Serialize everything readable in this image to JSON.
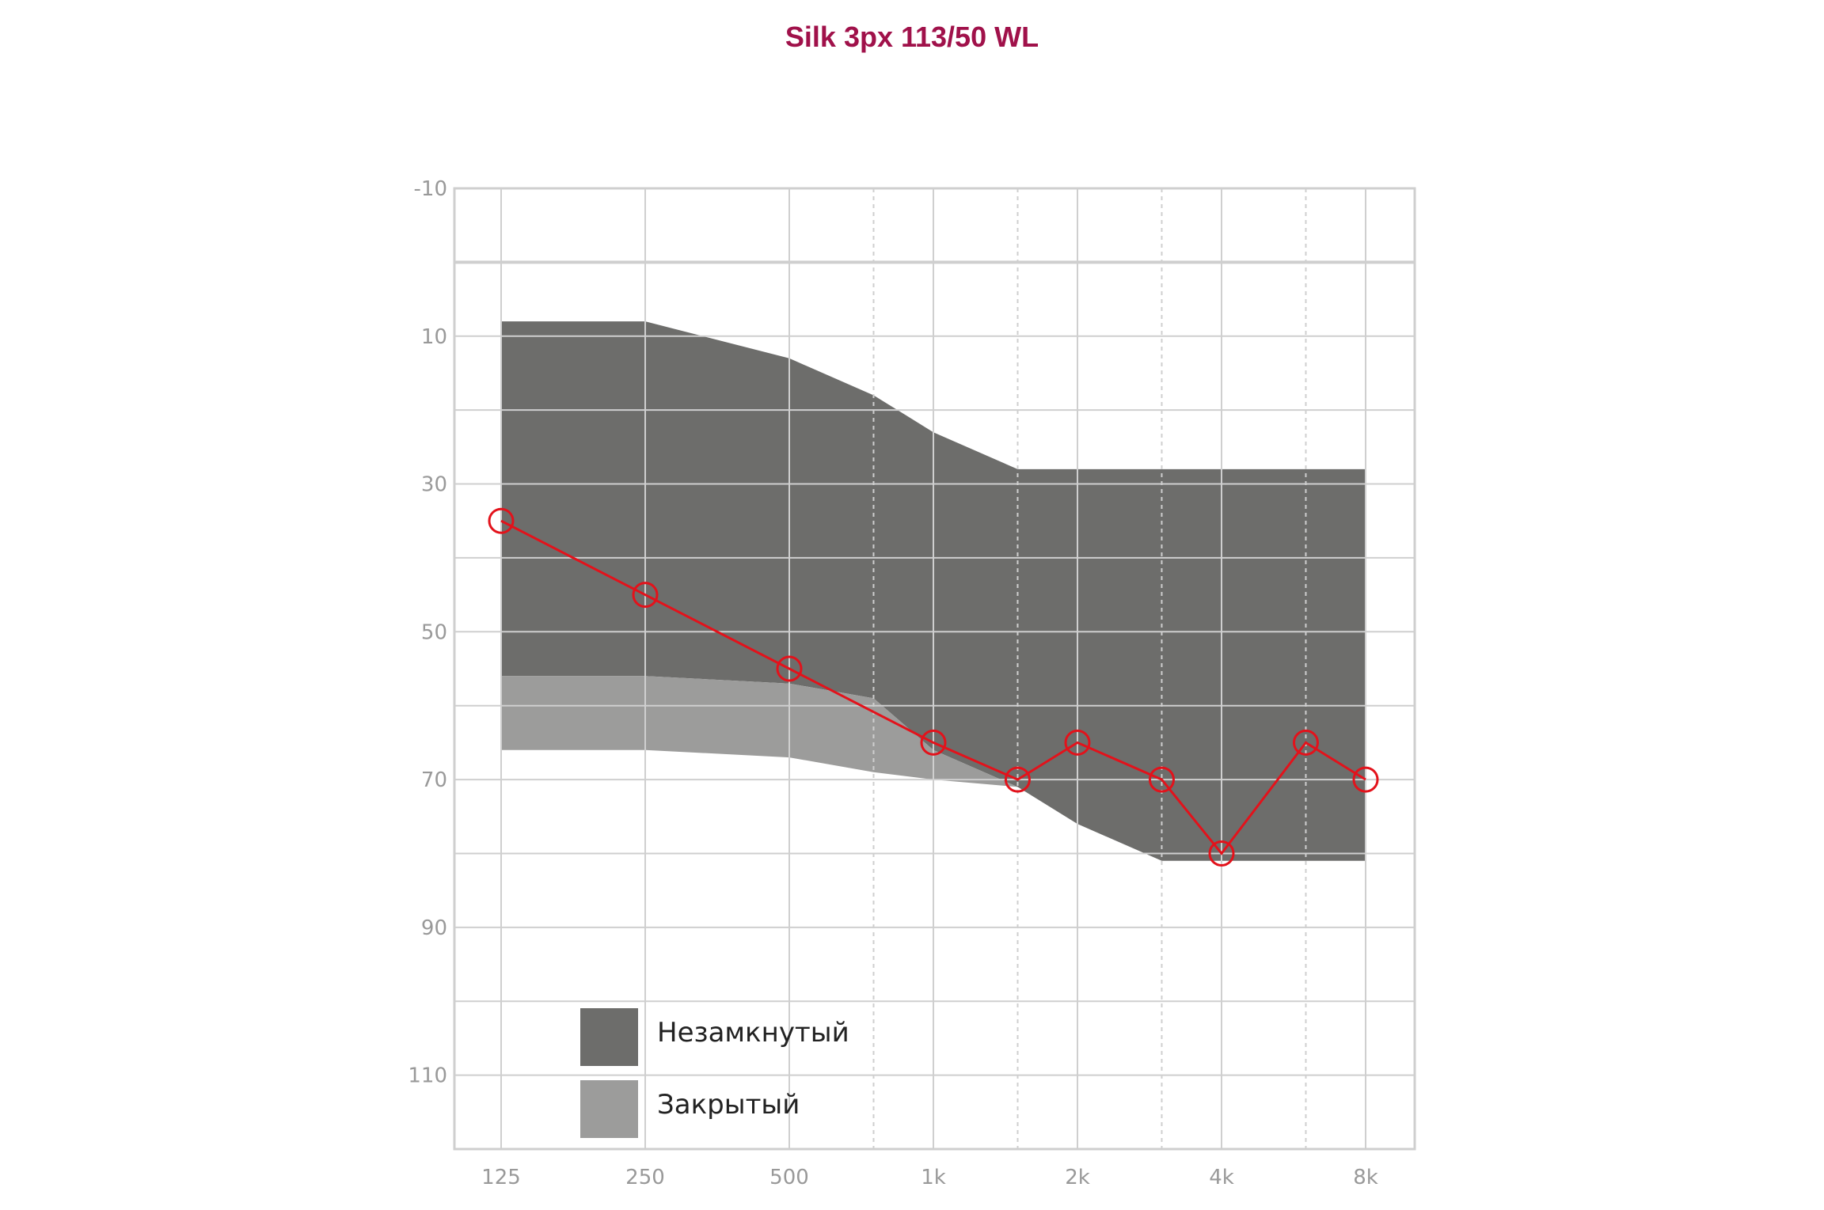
{
  "title": "Silk 3px 113/50 WL",
  "colors": {
    "title": "#a0114a",
    "open_fit": "#6d6d6b",
    "closed_fit": "#9c9c9b",
    "threshold": "#e3121b",
    "grid": "#cfcfcf"
  },
  "chart_data": {
    "type": "area",
    "title": "Silk 3px 113/50 WL",
    "xlabel": "",
    "ylabel": "",
    "x_ticks": [
      "125",
      "250",
      "500",
      "1k",
      "2k",
      "4k",
      "8k"
    ],
    "y_ticks": [
      "-10",
      "10",
      "30",
      "50",
      "70",
      "90",
      "110"
    ],
    "ylim": [
      -10,
      120
    ],
    "y_inverted": true,
    "x_scale": "log2",
    "grid": true,
    "legend_position": "bottom-left",
    "frequencies": [
      "125",
      "250",
      "500",
      "750",
      "1k",
      "1.5k",
      "2k",
      "3k",
      "4k",
      "6k",
      "8k"
    ],
    "series": [
      {
        "name": "Незамкнутый",
        "kind": "band",
        "color": "#6d6d6b",
        "freq": [
          125,
          250,
          500,
          750,
          1000,
          1500,
          2000,
          3000,
          4000,
          6000,
          8000
        ],
        "top": [
          8,
          8,
          13,
          18,
          23,
          28,
          28,
          28,
          28,
          28,
          28
        ],
        "bottom": [
          56,
          56,
          57,
          59,
          66,
          71,
          76,
          81,
          81,
          81,
          81
        ]
      },
      {
        "name": "Закрытый",
        "kind": "band",
        "color": "#9c9c9b",
        "freq": [
          125,
          250,
          500,
          750,
          1000,
          1500
        ],
        "top": [
          56,
          56,
          57,
          59,
          66,
          71
        ],
        "bottom": [
          66,
          66,
          67,
          69,
          70,
          71
        ]
      },
      {
        "kind": "line",
        "color": "#e3121b",
        "freq": [
          125,
          250,
          500,
          1000,
          1500,
          2000,
          3000,
          4000,
          6000,
          8000
        ],
        "values": [
          35,
          45,
          55,
          65,
          70,
          65,
          70,
          80,
          65,
          70
        ]
      }
    ]
  },
  "legend": {
    "items": [
      {
        "label": "Незамкнутый",
        "color": "#6d6d6b"
      },
      {
        "label": "Закрытый",
        "color": "#9c9c9b"
      }
    ]
  }
}
